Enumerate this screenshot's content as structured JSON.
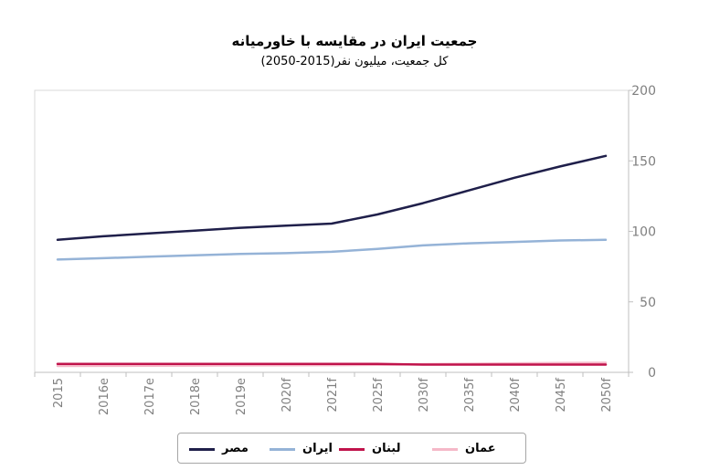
{
  "chart_data": {
    "type": "line",
    "title": "جمعیت ایران در مقایسه با خاورمیانه",
    "subtitle": "کل جمعیت، میلیون نفر(2015-2050)",
    "xlabel": "",
    "ylabel": "",
    "categories": [
      "2015",
      "2016e",
      "2017e",
      "2018e",
      "2019e",
      "2020f",
      "2021f",
      "2025f",
      "2030f",
      "2035f",
      "2040f",
      "2045f",
      "2050f"
    ],
    "ylim": [
      0,
      200
    ],
    "yticks": [
      "0",
      "50",
      "100",
      "150",
      "200"
    ],
    "grid": false,
    "legend_position": "bottom",
    "series": [
      {
        "name": "مصر",
        "color": "#1f1f4a",
        "values": [
          94,
          96.5,
          98.5,
          100.5,
          102.5,
          104,
          105.5,
          112,
          120,
          129,
          138,
          146,
          153.5
        ]
      },
      {
        "name": "ایران",
        "color": "#95b3d7",
        "values": [
          80,
          81,
          82,
          83,
          84,
          84.5,
          85.5,
          87.5,
          90,
          91.5,
          92.5,
          93.5,
          94
        ]
      },
      {
        "name": "لبنان",
        "color": "#c0134b",
        "values": [
          6,
          6,
          6,
          6,
          6,
          6,
          6,
          6,
          5.5,
          5.5,
          5.5,
          5.5,
          5.5
        ]
      },
      {
        "name": "عمان",
        "color": "#f5b8c8",
        "values": [
          4.5,
          4.6,
          4.7,
          4.8,
          4.9,
          5,
          5.1,
          5.4,
          5.8,
          6.1,
          6.4,
          6.6,
          6.8
        ]
      }
    ]
  }
}
